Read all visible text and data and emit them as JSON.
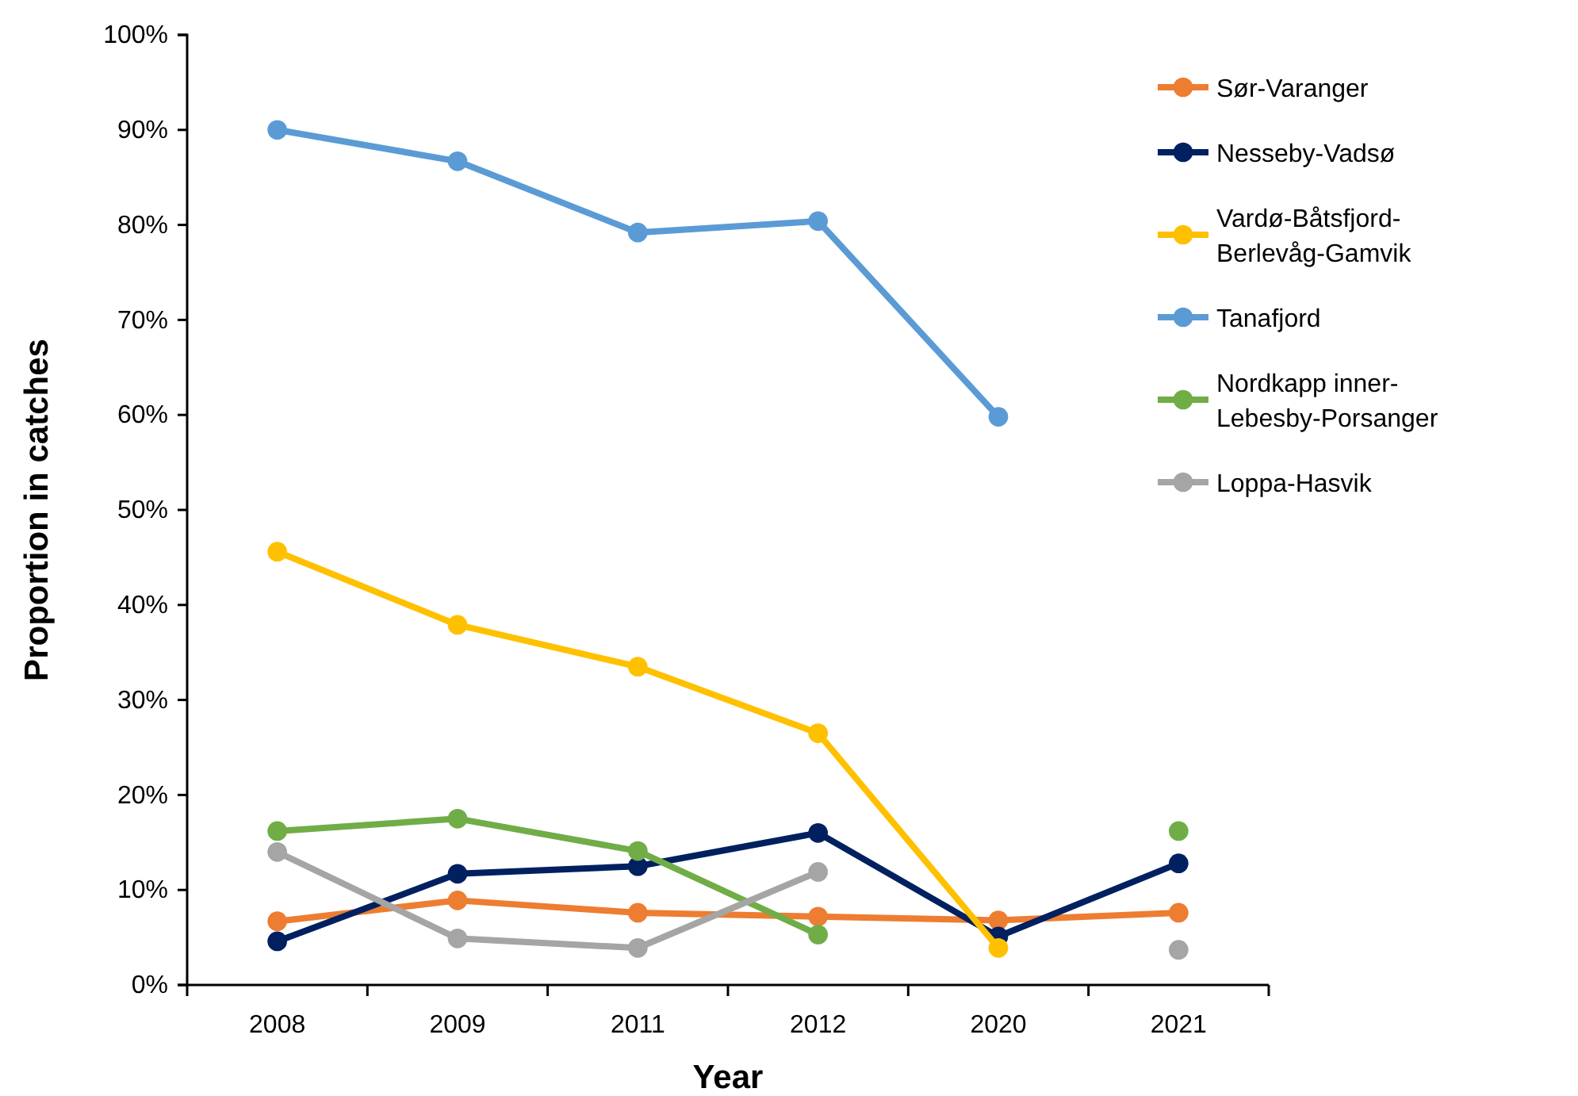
{
  "chart_data": {
    "type": "line",
    "xlabel": "Year",
    "ylabel": "Proportion in catches",
    "categories": [
      "2008",
      "2009",
      "2011",
      "2012",
      "2020",
      "2021"
    ],
    "ylim": [
      0,
      100
    ],
    "yticks": [
      {
        "value": 0,
        "label": "0%"
      },
      {
        "value": 10,
        "label": "10%"
      },
      {
        "value": 20,
        "label": "20%"
      },
      {
        "value": 30,
        "label": "30%"
      },
      {
        "value": 40,
        "label": "40%"
      },
      {
        "value": 50,
        "label": "50%"
      },
      {
        "value": 60,
        "label": "60%"
      },
      {
        "value": 70,
        "label": "70%"
      },
      {
        "value": 80,
        "label": "80%"
      },
      {
        "value": 90,
        "label": "90%"
      },
      {
        "value": 100,
        "label": "100%"
      }
    ],
    "series": [
      {
        "name": "Sør-Varanger",
        "color": "#ed7d31",
        "values": [
          6.7,
          8.9,
          7.6,
          7.2,
          6.8,
          7.6
        ]
      },
      {
        "name": "Nesseby-Vadsø",
        "color": "#002060",
        "values": [
          4.6,
          11.7,
          12.5,
          16.0,
          5.1,
          12.8
        ]
      },
      {
        "name": "Vardø-Båtsfjord-Berlevåg-Gamvik",
        "color": "#ffc000",
        "values": [
          45.6,
          37.9,
          33.5,
          26.5,
          3.9,
          null
        ]
      },
      {
        "name": "Tanafjord",
        "color": "#5b9bd5",
        "values": [
          90.0,
          86.7,
          79.2,
          80.4,
          59.8,
          null
        ]
      },
      {
        "name": "Nordkapp inner-Lebesby-Porsanger",
        "color": "#70ad47",
        "values": [
          16.2,
          17.5,
          14.1,
          5.3,
          null,
          16.2
        ]
      },
      {
        "name": "Loppa-Hasvik",
        "color": "#a5a5a5",
        "values": [
          14.0,
          4.9,
          3.9,
          11.9,
          null,
          3.7
        ]
      }
    ],
    "marker": "circle",
    "line_style": "solid",
    "legend": "right",
    "grid": false
  }
}
